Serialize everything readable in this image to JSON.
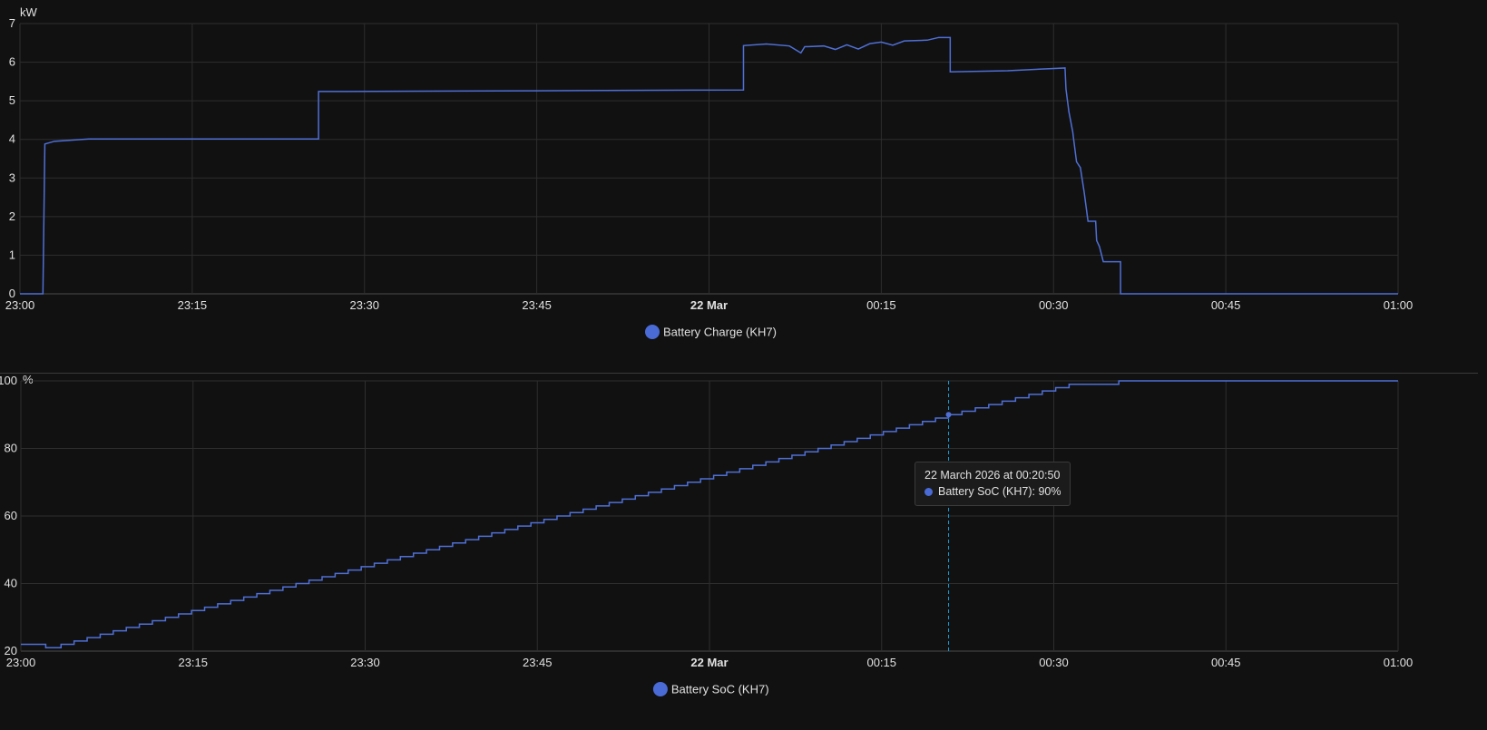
{
  "colors": {
    "series": "#4f6fd6",
    "legend_dot": "#4a6bd6",
    "crosshair": "#1b9bd6"
  },
  "chart_data": [
    {
      "type": "line",
      "unit_label": "kW",
      "ylim": [
        0,
        7
      ],
      "y_ticks": [
        "0",
        "1",
        "2",
        "3",
        "4",
        "5",
        "6",
        "7"
      ],
      "x_range": [
        "2026-03-21 23:00",
        "2026-03-22 01:00"
      ],
      "x_ticks": [
        "23:00",
        "23:15",
        "23:30",
        "23:45",
        "22 Mar",
        "00:15",
        "00:30",
        "00:45",
        "01:00"
      ],
      "x_tick_bold": [
        false,
        false,
        false,
        false,
        true,
        false,
        false,
        false,
        false
      ],
      "grid": true,
      "legend_position": "bottom-center",
      "series": [
        {
          "name": "Battery Charge (KH7)",
          "step": true,
          "points": [
            [
              "2026-03-21 23:00:00",
              0
            ],
            [
              "2026-03-21 23:02:00",
              0
            ],
            [
              "2026-03-21 23:02:10",
              3.88
            ],
            [
              "2026-03-21 23:03:00",
              3.95
            ],
            [
              "2026-03-21 23:06:00",
              4.01
            ],
            [
              "2026-03-21 23:26:00",
              4.01
            ],
            [
              "2026-03-21 23:26:00",
              5.24
            ],
            [
              "2026-03-21 23:45:00",
              5.26
            ],
            [
              "2026-03-22 00:03:00",
              5.28
            ],
            [
              "2026-03-22 00:03:00",
              6.43
            ],
            [
              "2026-03-22 00:05:00",
              6.47
            ],
            [
              "2026-03-22 00:07:00",
              6.42
            ],
            [
              "2026-03-22 00:08:00",
              6.24
            ],
            [
              "2026-03-22 00:08:20",
              6.4
            ],
            [
              "2026-03-22 00:10:00",
              6.42
            ],
            [
              "2026-03-22 00:11:00",
              6.33
            ],
            [
              "2026-03-22 00:12:00",
              6.45
            ],
            [
              "2026-03-22 00:13:00",
              6.34
            ],
            [
              "2026-03-22 00:14:00",
              6.48
            ],
            [
              "2026-03-22 00:15:00",
              6.52
            ],
            [
              "2026-03-22 00:16:00",
              6.44
            ],
            [
              "2026-03-22 00:17:00",
              6.55
            ],
            [
              "2026-03-22 00:19:00",
              6.57
            ],
            [
              "2026-03-22 00:20:00",
              6.64
            ],
            [
              "2026-03-22 00:21:00",
              6.64
            ],
            [
              "2026-03-22 00:21:00",
              5.75
            ],
            [
              "2026-03-22 00:26:00",
              5.78
            ],
            [
              "2026-03-22 00:31:00",
              5.85
            ],
            [
              "2026-03-22 00:31:05",
              5.3
            ],
            [
              "2026-03-22 00:31:20",
              4.72
            ],
            [
              "2026-03-22 00:31:40",
              4.2
            ],
            [
              "2026-03-22 00:32:00",
              3.42
            ],
            [
              "2026-03-22 00:32:20",
              3.27
            ],
            [
              "2026-03-22 00:32:40",
              2.63
            ],
            [
              "2026-03-22 00:33:00",
              1.88
            ],
            [
              "2026-03-22 00:33:40",
              1.88
            ],
            [
              "2026-03-22 00:33:45",
              1.38
            ],
            [
              "2026-03-22 00:34:00",
              1.22
            ],
            [
              "2026-03-22 00:34:20",
              0.83
            ],
            [
              "2026-03-22 00:35:50",
              0.83
            ],
            [
              "2026-03-22 00:35:50",
              0
            ],
            [
              "2026-03-22 01:00:00",
              0
            ]
          ]
        }
      ]
    },
    {
      "type": "line",
      "unit_label": "%",
      "ylim": [
        20,
        100
      ],
      "y_ticks": [
        "20",
        "40",
        "60",
        "80",
        "100"
      ],
      "x_range": [
        "2026-03-21 23:00",
        "2026-03-22 01:00"
      ],
      "x_ticks": [
        "23:00",
        "23:15",
        "23:30",
        "23:45",
        "22 Mar",
        "00:15",
        "00:30",
        "00:45",
        "01:00"
      ],
      "x_tick_bold": [
        false,
        false,
        false,
        false,
        true,
        false,
        false,
        false,
        false
      ],
      "grid": true,
      "legend_position": "bottom-center",
      "series": [
        {
          "name": "Battery SoC (KH7)",
          "step": true,
          "points": [
            [
              "2026-03-21 23:00:00",
              22
            ],
            [
              "2026-03-21 23:02:10",
              21
            ],
            [
              "2026-03-21 23:03:30",
              22
            ],
            [
              "2026-03-22 00:20:50",
              90
            ],
            [
              "2026-03-22 00:31:20",
              99
            ],
            [
              "2026-03-22 00:35:40",
              100
            ],
            [
              "2026-03-22 01:00:00",
              100
            ]
          ]
        }
      ],
      "tooltip": {
        "time": "2026-03-22 00:20:50",
        "title": "22 March 2026 at 00:20:50",
        "line": "Battery SoC (KH7): 90%"
      }
    }
  ]
}
